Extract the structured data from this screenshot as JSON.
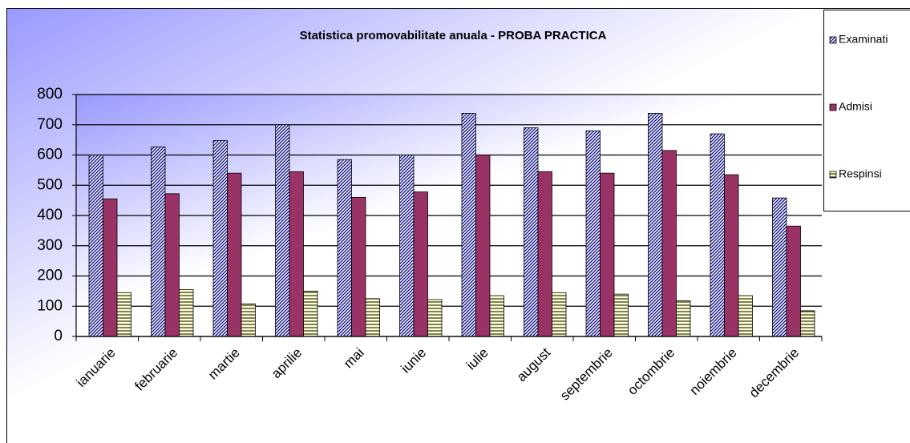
{
  "chart_data": {
    "type": "bar",
    "title": "Statistica promovabilitate anuala - PROBA  PRACTICA",
    "categories": [
      "ianuarie",
      "februarie",
      "martie",
      "aprilie",
      "mai",
      "iunie",
      "iulie",
      "august",
      "septembrie",
      "octombrie",
      "noiembrie",
      "decembrie"
    ],
    "series": [
      {
        "name": "Examinati",
        "color": "#000080",
        "hatch": "diagonal",
        "values": [
          600,
          627,
          648,
          700,
          585,
          600,
          738,
          690,
          680,
          738,
          670,
          458
        ]
      },
      {
        "name": "Admisi",
        "color": "#993366",
        "hatch": "none",
        "values": [
          455,
          472,
          540,
          545,
          460,
          478,
          600,
          545,
          540,
          615,
          535,
          365
        ]
      },
      {
        "name": "Respinsi",
        "color": "#ffffcc",
        "hatch": "horizontal",
        "values": [
          145,
          155,
          108,
          150,
          125,
          122,
          135,
          145,
          140,
          118,
          135,
          85
        ]
      }
    ],
    "ylim": [
      0,
      800
    ],
    "yticks": [
      0,
      100,
      200,
      300,
      400,
      500,
      600,
      700,
      800
    ],
    "grid": true,
    "legend": "right"
  }
}
